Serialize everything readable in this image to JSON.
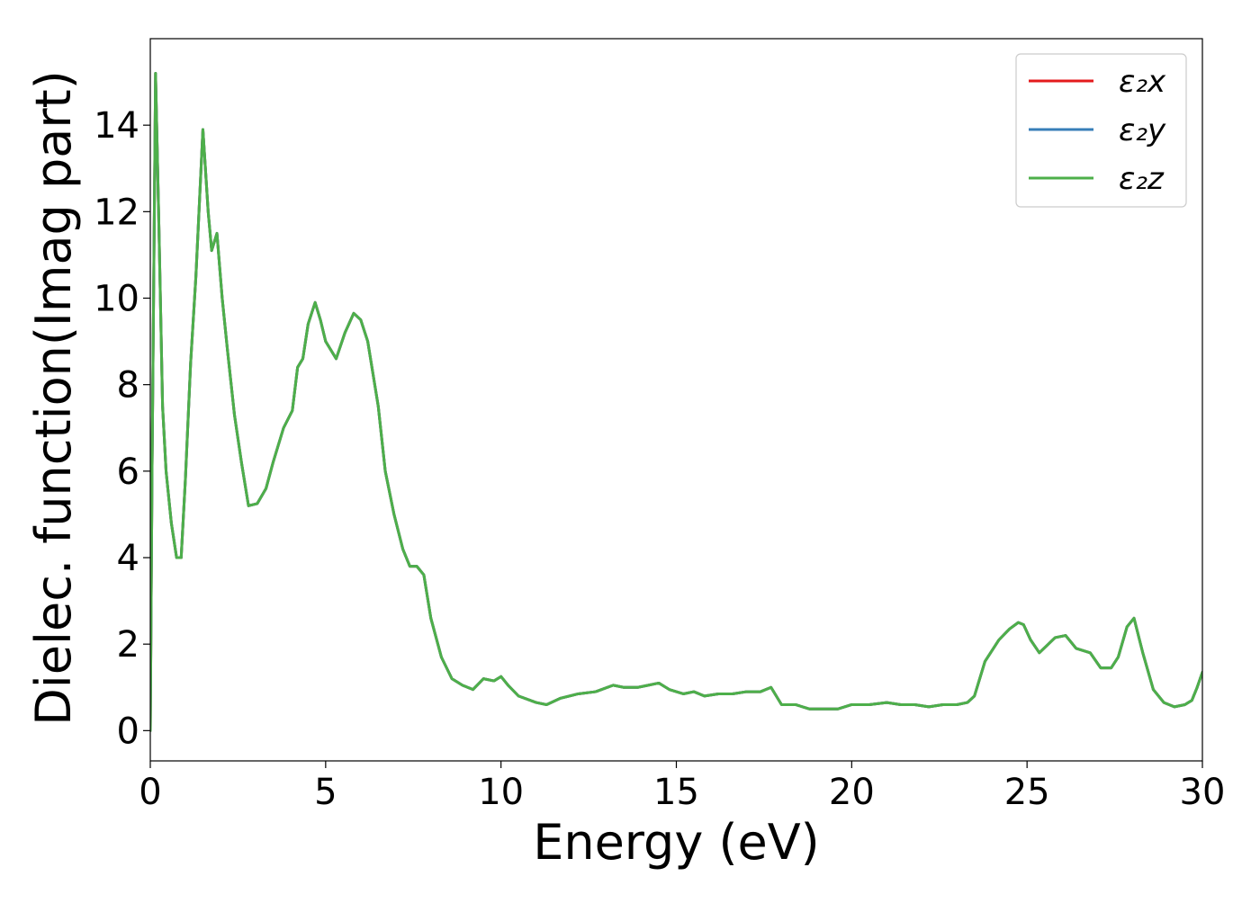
{
  "chart_data": {
    "type": "line",
    "xlabel": "Energy (eV)",
    "ylabel": "Dielec. function(Imag part)",
    "xlim": [
      0,
      30
    ],
    "ylim": [
      -0.7,
      16
    ],
    "xticks": [
      "0",
      "5",
      "10",
      "15",
      "20",
      "25",
      "30"
    ],
    "yticks": [
      "0",
      "2",
      "4",
      "6",
      "8",
      "10",
      "12",
      "14"
    ],
    "grid": false,
    "legend_position": "top-right",
    "series": [
      {
        "name": "ε₂x",
        "color": "#e41a1c",
        "x": [
          0,
          0.05,
          0.15,
          0.25,
          0.35,
          0.45,
          0.6,
          0.75,
          0.88,
          1.0,
          1.15,
          1.3,
          1.5,
          1.65,
          1.75,
          1.9,
          2.05,
          2.2,
          2.4,
          2.6,
          2.8,
          3.05,
          3.3,
          3.5,
          3.8,
          4.05,
          4.2,
          4.35,
          4.5,
          4.7,
          4.85,
          5.0,
          5.3,
          5.55,
          5.8,
          6.0,
          6.2,
          6.5,
          6.7,
          6.95,
          7.2,
          7.4,
          7.6,
          7.8,
          8.0,
          8.3,
          8.6,
          8.9,
          9.2,
          9.5,
          9.8,
          10.0,
          10.2,
          10.5,
          11.0,
          11.3,
          11.7,
          12.2,
          12.7,
          13.2,
          13.5,
          13.9,
          14.2,
          14.5,
          14.8,
          15.2,
          15.5,
          15.8,
          16.2,
          16.6,
          17.0,
          17.4,
          17.7,
          18.0,
          18.4,
          18.8,
          19.2,
          19.6,
          20.0,
          20.5,
          21.0,
          21.4,
          21.8,
          22.2,
          22.6,
          23.0,
          23.3,
          23.5,
          23.8,
          24.2,
          24.5,
          24.75,
          24.9,
          25.1,
          25.35,
          25.8,
          26.1,
          26.4,
          26.8,
          27.1,
          27.4,
          27.6,
          27.85,
          28.05,
          28.3,
          28.6,
          28.9,
          29.2,
          29.5,
          29.7,
          29.85,
          30.0
        ],
        "y": [
          0,
          6,
          15.2,
          11.5,
          7.5,
          6.0,
          4.8,
          4.0,
          4.0,
          5.8,
          8.5,
          10.5,
          13.9,
          12.0,
          11.1,
          11.5,
          10.0,
          8.8,
          7.3,
          6.2,
          5.2,
          5.25,
          5.6,
          6.2,
          7.0,
          7.4,
          8.4,
          8.6,
          9.4,
          9.9,
          9.5,
          9.0,
          8.6,
          9.2,
          9.65,
          9.5,
          9.0,
          7.5,
          6.0,
          5.0,
          4.2,
          3.8,
          3.8,
          3.6,
          2.6,
          1.7,
          1.2,
          1.05,
          0.95,
          1.2,
          1.15,
          1.25,
          1.05,
          0.8,
          0.65,
          0.6,
          0.75,
          0.85,
          0.9,
          1.05,
          1.0,
          1.0,
          1.05,
          1.1,
          0.95,
          0.85,
          0.9,
          0.8,
          0.85,
          0.85,
          0.9,
          0.9,
          1.0,
          0.6,
          0.6,
          0.5,
          0.5,
          0.5,
          0.6,
          0.6,
          0.65,
          0.6,
          0.6,
          0.55,
          0.6,
          0.6,
          0.65,
          0.8,
          1.6,
          2.1,
          2.35,
          2.5,
          2.45,
          2.1,
          1.8,
          2.15,
          2.2,
          1.9,
          1.8,
          1.45,
          1.45,
          1.7,
          2.4,
          2.6,
          1.8,
          0.95,
          0.65,
          0.55,
          0.6,
          0.7,
          1.0,
          1.35
        ]
      },
      {
        "name": "ε₂y",
        "color": "#377eb8",
        "x": [
          0,
          0.05,
          0.15,
          0.25,
          0.35,
          0.45,
          0.6,
          0.75,
          0.88,
          1.0,
          1.15,
          1.3,
          1.5,
          1.65,
          1.75,
          1.9,
          2.05,
          2.2,
          2.4,
          2.6,
          2.8,
          3.05,
          3.3,
          3.5,
          3.8,
          4.05,
          4.2,
          4.35,
          4.5,
          4.7,
          4.85,
          5.0,
          5.3,
          5.55,
          5.8,
          6.0,
          6.2,
          6.5,
          6.7,
          6.95,
          7.2,
          7.4,
          7.6,
          7.8,
          8.0,
          8.3,
          8.6,
          8.9,
          9.2,
          9.5,
          9.8,
          10.0,
          10.2,
          10.5,
          11.0,
          11.3,
          11.7,
          12.2,
          12.7,
          13.2,
          13.5,
          13.9,
          14.2,
          14.5,
          14.8,
          15.2,
          15.5,
          15.8,
          16.2,
          16.6,
          17.0,
          17.4,
          17.7,
          18.0,
          18.4,
          18.8,
          19.2,
          19.6,
          20.0,
          20.5,
          21.0,
          21.4,
          21.8,
          22.2,
          22.6,
          23.0,
          23.3,
          23.5,
          23.8,
          24.2,
          24.5,
          24.75,
          24.9,
          25.1,
          25.35,
          25.8,
          26.1,
          26.4,
          26.8,
          27.1,
          27.4,
          27.6,
          27.85,
          28.05,
          28.3,
          28.6,
          28.9,
          29.2,
          29.5,
          29.7,
          29.85,
          30.0
        ],
        "y": [
          0,
          6,
          15.2,
          11.5,
          7.5,
          6.0,
          4.8,
          4.0,
          4.0,
          5.8,
          8.5,
          10.5,
          13.9,
          12.0,
          11.1,
          11.5,
          10.0,
          8.8,
          7.3,
          6.2,
          5.2,
          5.25,
          5.6,
          6.2,
          7.0,
          7.4,
          8.4,
          8.6,
          9.4,
          9.9,
          9.5,
          9.0,
          8.6,
          9.2,
          9.65,
          9.5,
          9.0,
          7.5,
          6.0,
          5.0,
          4.2,
          3.8,
          3.8,
          3.6,
          2.6,
          1.7,
          1.2,
          1.05,
          0.95,
          1.2,
          1.15,
          1.25,
          1.05,
          0.8,
          0.65,
          0.6,
          0.75,
          0.85,
          0.9,
          1.05,
          1.0,
          1.0,
          1.05,
          1.1,
          0.95,
          0.85,
          0.9,
          0.8,
          0.85,
          0.85,
          0.9,
          0.9,
          1.0,
          0.6,
          0.6,
          0.5,
          0.5,
          0.5,
          0.6,
          0.6,
          0.65,
          0.6,
          0.6,
          0.55,
          0.6,
          0.6,
          0.65,
          0.8,
          1.6,
          2.1,
          2.35,
          2.5,
          2.45,
          2.1,
          1.8,
          2.15,
          2.2,
          1.9,
          1.8,
          1.45,
          1.45,
          1.7,
          2.4,
          2.6,
          1.8,
          0.95,
          0.65,
          0.55,
          0.6,
          0.7,
          1.0,
          1.35
        ]
      },
      {
        "name": "ε₂z",
        "color": "#4daf4a",
        "x": [
          0,
          0.05,
          0.15,
          0.25,
          0.35,
          0.45,
          0.6,
          0.75,
          0.88,
          1.0,
          1.15,
          1.3,
          1.5,
          1.65,
          1.75,
          1.9,
          2.05,
          2.2,
          2.4,
          2.6,
          2.8,
          3.05,
          3.3,
          3.5,
          3.8,
          4.05,
          4.2,
          4.35,
          4.5,
          4.7,
          4.85,
          5.0,
          5.3,
          5.55,
          5.8,
          6.0,
          6.2,
          6.5,
          6.7,
          6.95,
          7.2,
          7.4,
          7.6,
          7.8,
          8.0,
          8.3,
          8.6,
          8.9,
          9.2,
          9.5,
          9.8,
          10.0,
          10.2,
          10.5,
          11.0,
          11.3,
          11.7,
          12.2,
          12.7,
          13.2,
          13.5,
          13.9,
          14.2,
          14.5,
          14.8,
          15.2,
          15.5,
          15.8,
          16.2,
          16.6,
          17.0,
          17.4,
          17.7,
          18.0,
          18.4,
          18.8,
          19.2,
          19.6,
          20.0,
          20.5,
          21.0,
          21.4,
          21.8,
          22.2,
          22.6,
          23.0,
          23.3,
          23.5,
          23.8,
          24.2,
          24.5,
          24.75,
          24.9,
          25.1,
          25.35,
          25.8,
          26.1,
          26.4,
          26.8,
          27.1,
          27.4,
          27.6,
          27.85,
          28.05,
          28.3,
          28.6,
          28.9,
          29.2,
          29.5,
          29.7,
          29.85,
          30.0
        ],
        "y": [
          0,
          6,
          15.2,
          11.5,
          7.5,
          6.0,
          4.8,
          4.0,
          4.0,
          5.8,
          8.5,
          10.5,
          13.9,
          12.0,
          11.1,
          11.5,
          10.0,
          8.8,
          7.3,
          6.2,
          5.2,
          5.25,
          5.6,
          6.2,
          7.0,
          7.4,
          8.4,
          8.6,
          9.4,
          9.9,
          9.5,
          9.0,
          8.6,
          9.2,
          9.65,
          9.5,
          9.0,
          7.5,
          6.0,
          5.0,
          4.2,
          3.8,
          3.8,
          3.6,
          2.6,
          1.7,
          1.2,
          1.05,
          0.95,
          1.2,
          1.15,
          1.25,
          1.05,
          0.8,
          0.65,
          0.6,
          0.75,
          0.85,
          0.9,
          1.05,
          1.0,
          1.0,
          1.05,
          1.1,
          0.95,
          0.85,
          0.9,
          0.8,
          0.85,
          0.85,
          0.9,
          0.9,
          1.0,
          0.6,
          0.6,
          0.5,
          0.5,
          0.5,
          0.6,
          0.6,
          0.65,
          0.6,
          0.6,
          0.55,
          0.6,
          0.6,
          0.65,
          0.8,
          1.6,
          2.1,
          2.35,
          2.5,
          2.45,
          2.1,
          1.8,
          2.15,
          2.2,
          1.9,
          1.8,
          1.45,
          1.45,
          1.7,
          2.4,
          2.6,
          1.8,
          0.95,
          0.65,
          0.55,
          0.6,
          0.7,
          1.0,
          1.35
        ]
      }
    ]
  }
}
